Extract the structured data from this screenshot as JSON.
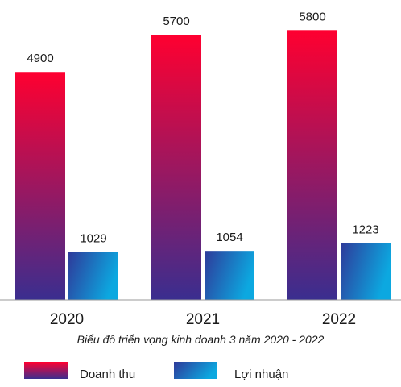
{
  "chart_data": {
    "type": "bar",
    "categories": [
      "2020",
      "2021",
      "2022"
    ],
    "series": [
      {
        "name": "Doanh thu",
        "values": [
          4900,
          5700,
          5800
        ],
        "gradient": [
          "#ff0030",
          "#3a2e8f"
        ]
      },
      {
        "name": "Lợi nhuận",
        "values": [
          1029,
          1054,
          1223
        ],
        "gradient": [
          "#2e3a9a",
          "#0ca8e0"
        ]
      }
    ],
    "data_labels": true,
    "title": "",
    "subtitle": "Biểu đồ triển vọng kinh doanh 3 năm 2020 - 2022",
    "xlabel": "",
    "ylabel": "",
    "ylim": [
      0,
      6100
    ],
    "grid": false,
    "legend_position": "bottom-left"
  },
  "colors": {
    "axis": "#9a9a9a",
    "text": "#1a1a1a"
  }
}
